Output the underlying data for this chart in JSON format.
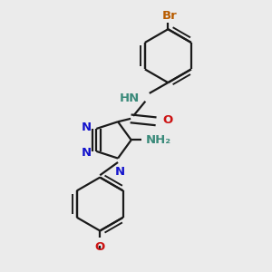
{
  "bg_color": "#ebebeb",
  "bond_color": "#1a1a1a",
  "bond_width": 1.6,
  "atoms": {
    "N_blue": "#1414cc",
    "O_red": "#cc1414",
    "Br_orange": "#b85c00",
    "NH_teal": "#3a8a7a",
    "C_black": "#1a1a1a"
  },
  "fig_width": 3.0,
  "fig_height": 3.0,
  "dpi": 100,
  "xlim": [
    0,
    10
  ],
  "ylim": [
    0,
    10
  ]
}
